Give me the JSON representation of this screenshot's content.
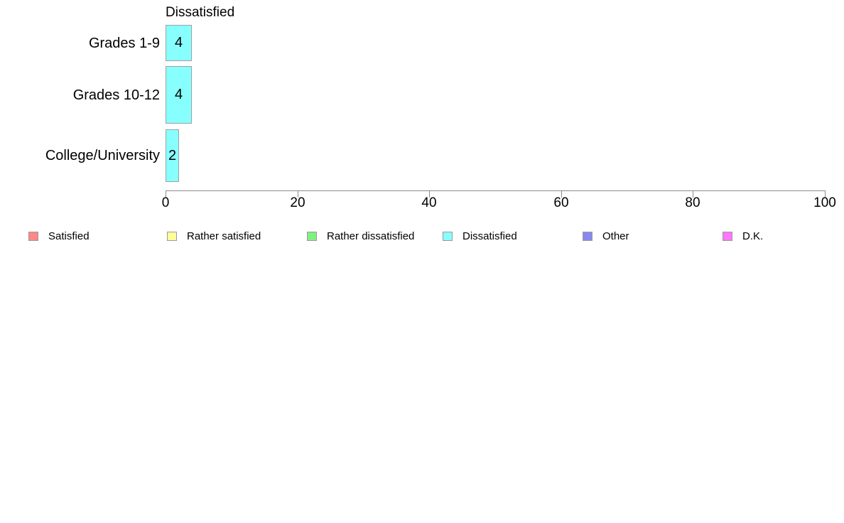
{
  "chart_data": {
    "type": "bar",
    "orientation": "horizontal",
    "title": "Dissatisfied",
    "categories": [
      "Grades 1-9",
      "Grades 10-12",
      "College/University"
    ],
    "values": [
      4,
      4,
      2
    ],
    "bar_labels": [
      "4",
      "4",
      "2"
    ],
    "xlabel": "",
    "ylabel": "",
    "xlim": [
      0,
      100
    ],
    "x_ticks": [
      0,
      20,
      40,
      60,
      80,
      100
    ],
    "x_tick_labels": [
      "0",
      "20",
      "40",
      "60",
      "80",
      "100"
    ],
    "grid": false,
    "bar_color": "#88FFFF",
    "bar_border_color": "#A0A0A0",
    "axis_color": "#8C8C8C",
    "text_color": "#000000",
    "legend": {
      "position": "bottom",
      "items": [
        {
          "label": "Satisfied",
          "color": "#FF8888"
        },
        {
          "label": "Rather satisfied",
          "color": "#FFFF99"
        },
        {
          "label": "Rather dissatisfied",
          "color": "#80F080"
        },
        {
          "label": "Dissatisfied",
          "color": "#88FFFF"
        },
        {
          "label": "Other",
          "color": "#8888F0"
        },
        {
          "label": "D.K.",
          "color": "#FF77FF"
        }
      ]
    }
  }
}
